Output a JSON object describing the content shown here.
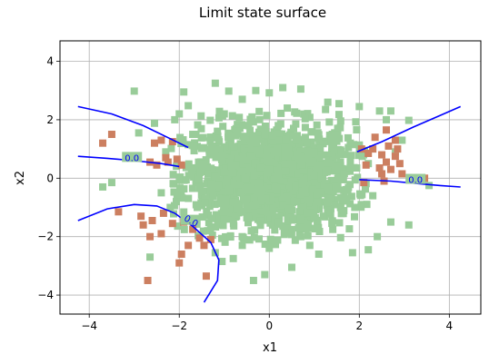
{
  "chart_data": {
    "type": "scatter",
    "title": "Limit state surface",
    "xlabel": "x1",
    "ylabel": "x2",
    "xlim": [
      -4.65,
      4.7
    ],
    "ylim": [
      -4.65,
      4.7
    ],
    "xticks": [
      -4,
      -2,
      0,
      2,
      4
    ],
    "yticks": [
      -4,
      -2,
      0,
      2,
      4
    ],
    "grid": true,
    "colors": {
      "safe": "#99cc99",
      "fail": "#cc7f60",
      "contour": "#0000ff"
    },
    "contour_label": "0.0",
    "contour_label_positions": [
      [
        -3.05,
        0.65
      ],
      [
        -1.75,
        -1.5
      ],
      [
        3.25,
        -0.1
      ]
    ],
    "contour_level": 0.0,
    "contour_lines": [
      [
        [
          -4.25,
          2.45
        ],
        [
          -3.5,
          2.2
        ],
        [
          -2.8,
          1.8
        ],
        [
          -2.2,
          1.35
        ],
        [
          -1.8,
          1.05
        ]
      ],
      [
        [
          -4.25,
          0.75
        ],
        [
          -3.6,
          0.68
        ],
        [
          -3.0,
          0.6
        ],
        [
          -2.4,
          0.5
        ],
        [
          -2.0,
          0.4
        ]
      ],
      [
        [
          -4.25,
          -1.45
        ],
        [
          -3.6,
          -1.05
        ],
        [
          -3.0,
          -0.9
        ],
        [
          -2.5,
          -0.95
        ],
        [
          -2.1,
          -1.2
        ],
        [
          -1.7,
          -1.65
        ],
        [
          -1.3,
          -2.2
        ],
        [
          -1.12,
          -2.8
        ],
        [
          -1.15,
          -3.5
        ],
        [
          -1.45,
          -4.25
        ]
      ],
      [
        [
          1.95,
          0.9
        ],
        [
          2.5,
          1.25
        ],
        [
          3.2,
          1.75
        ],
        [
          3.8,
          2.15
        ],
        [
          4.25,
          2.45
        ]
      ],
      [
        [
          2.0,
          -0.05
        ],
        [
          2.7,
          -0.1
        ],
        [
          3.4,
          -0.2
        ],
        [
          3.8,
          -0.25
        ],
        [
          4.25,
          -0.3
        ]
      ]
    ],
    "series": [
      {
        "name": "",
        "category": "safe",
        "points": [
          [
            -1.2,
            3.25
          ],
          [
            -1.0,
            2.2
          ],
          [
            -0.9,
            2.98
          ],
          [
            -0.6,
            2.7
          ],
          [
            -0.3,
            3.0
          ],
          [
            0.0,
            2.92
          ],
          [
            0.3,
            3.1
          ],
          [
            0.7,
            3.05
          ],
          [
            1.3,
            2.6
          ],
          [
            1.55,
            2.55
          ],
          [
            1.25,
            2.35
          ],
          [
            2.0,
            2.45
          ],
          [
            2.45,
            2.3
          ],
          [
            2.7,
            2.3
          ],
          [
            2.6,
            2.0
          ],
          [
            3.1,
            1.98
          ],
          [
            -1.9,
            2.95
          ],
          [
            -1.8,
            2.48
          ],
          [
            -2.1,
            2.0
          ],
          [
            -2.55,
            1.88
          ],
          [
            -2.9,
            1.55
          ],
          [
            -3.0,
            2.98
          ],
          [
            -3.5,
            -0.15
          ],
          [
            -2.65,
            -2.7
          ],
          [
            -1.05,
            -2.85
          ],
          [
            -1.2,
            -2.55
          ],
          [
            -0.8,
            -2.75
          ],
          [
            -0.35,
            -3.5
          ],
          [
            -0.1,
            -3.3
          ],
          [
            0.5,
            -3.05
          ],
          [
            1.1,
            -2.6
          ],
          [
            1.85,
            -2.55
          ],
          [
            2.2,
            -2.45
          ],
          [
            2.4,
            -2.0
          ],
          [
            2.7,
            -1.5
          ],
          [
            3.1,
            -1.6
          ],
          [
            3.4,
            -0.05
          ],
          [
            3.55,
            -0.25
          ],
          [
            2.95,
            1.3
          ],
          [
            2.8,
            0.9
          ],
          [
            -1.1,
            1.0
          ],
          [
            -0.7,
            1.6
          ],
          [
            -0.3,
            1.2
          ],
          [
            0.2,
            1.8
          ],
          [
            0.6,
            1.3
          ],
          [
            1.0,
            0.9
          ],
          [
            1.4,
            1.5
          ],
          [
            -1.5,
            0.5
          ],
          [
            -1.0,
            0.2
          ],
          [
            -0.5,
            0.6
          ],
          [
            0.0,
            0.3
          ],
          [
            0.5,
            0.5
          ],
          [
            1.0,
            0.1
          ],
          [
            1.5,
            0.4
          ],
          [
            -1.3,
            -0.4
          ],
          [
            -0.8,
            -0.8
          ],
          [
            -0.2,
            -0.5
          ],
          [
            0.3,
            -0.9
          ],
          [
            0.8,
            -0.4
          ],
          [
            1.3,
            -0.7
          ],
          [
            -1.0,
            -1.4
          ],
          [
            -0.4,
            -1.8
          ],
          [
            0.2,
            -1.5
          ],
          [
            0.7,
            -2.0
          ],
          [
            1.2,
            -1.3
          ],
          [
            -0.6,
            -2.3
          ],
          [
            0.0,
            -2.4
          ],
          [
            0.9,
            -2.3
          ],
          [
            -2.3,
            0.9
          ],
          [
            -2.4,
            -0.5
          ],
          [
            -2.2,
            -1.0
          ],
          [
            -1.7,
            1.5
          ],
          [
            -1.6,
            -1.0
          ],
          [
            1.8,
            1.2
          ],
          [
            1.9,
            -1.0
          ],
          [
            2.2,
            0.5
          ],
          [
            2.3,
            -0.6
          ],
          [
            -3.7,
            -0.3
          ],
          [
            -2.0,
            2.2
          ],
          [
            0.4,
            2.4
          ]
        ]
      },
      {
        "name": "",
        "category": "fail",
        "points": [
          [
            -3.5,
            1.5
          ],
          [
            -3.7,
            1.2
          ],
          [
            -3.35,
            -1.15
          ],
          [
            -2.7,
            -3.5
          ],
          [
            -2.85,
            -1.3
          ],
          [
            -2.8,
            -1.6
          ],
          [
            -2.4,
            -1.9
          ],
          [
            -2.15,
            -1.55
          ],
          [
            -1.9,
            -1.5
          ],
          [
            -1.7,
            -1.75
          ],
          [
            -1.55,
            -2.05
          ],
          [
            -1.8,
            -2.3
          ],
          [
            -1.3,
            -2.1
          ],
          [
            -1.95,
            -2.6
          ],
          [
            -2.0,
            -2.9
          ],
          [
            -1.45,
            -2.3
          ],
          [
            -2.6,
            -1.45
          ],
          [
            -2.65,
            -2.0
          ],
          [
            -2.35,
            -1.2
          ],
          [
            -1.4,
            -3.35
          ],
          [
            -2.55,
            1.2
          ],
          [
            -2.4,
            1.3
          ],
          [
            -2.15,
            1.25
          ],
          [
            -2.5,
            0.45
          ],
          [
            -2.25,
            0.55
          ],
          [
            -1.95,
            0.45
          ],
          [
            -2.3,
            0.7
          ],
          [
            -2.05,
            0.65
          ],
          [
            -2.65,
            0.55
          ],
          [
            2.05,
            1.0
          ],
          [
            2.3,
            1.0
          ],
          [
            2.2,
            0.85
          ],
          [
            2.5,
            0.8
          ],
          [
            2.8,
            0.75
          ],
          [
            2.6,
            0.55
          ],
          [
            2.9,
            0.5
          ],
          [
            2.45,
            0.35
          ],
          [
            2.7,
            0.3
          ],
          [
            2.15,
            0.45
          ],
          [
            2.35,
            1.4
          ],
          [
            2.6,
            1.65
          ],
          [
            2.8,
            1.3
          ],
          [
            2.85,
            1.0
          ],
          [
            2.65,
            1.1
          ],
          [
            2.1,
            -0.15
          ],
          [
            2.55,
            -0.1
          ],
          [
            2.95,
            0.15
          ],
          [
            3.3,
            0.0
          ],
          [
            3.45,
            0.0
          ],
          [
            2.5,
            0.15
          ]
        ]
      }
    ]
  }
}
